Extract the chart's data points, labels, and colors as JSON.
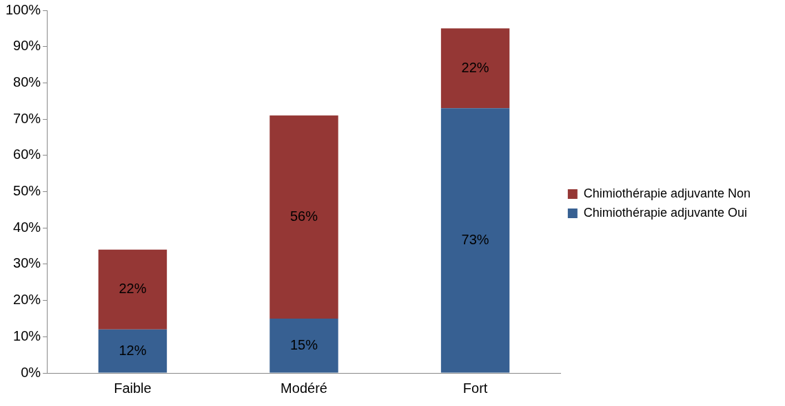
{
  "chart_data": {
    "type": "bar",
    "stacked": true,
    "categories": [
      "Faible",
      "Modéré",
      "Fort"
    ],
    "series": [
      {
        "name": "Chimiothérapie adjuvante Oui",
        "color": "#376092",
        "values": [
          12,
          15,
          73
        ],
        "value_labels": [
          "12%",
          "15%",
          "73%"
        ]
      },
      {
        "name": "Chimiothérapie adjuvante Non",
        "color": "#953735",
        "values": [
          22,
          56,
          22
        ],
        "value_labels": [
          "22%",
          "56%",
          "22%"
        ]
      }
    ],
    "ylim": [
      0,
      100
    ],
    "yticks": [
      {
        "value": 0,
        "label": "0%"
      },
      {
        "value": 10,
        "label": "10%"
      },
      {
        "value": 20,
        "label": "20%"
      },
      {
        "value": 30,
        "label": "30%"
      },
      {
        "value": 40,
        "label": "40%"
      },
      {
        "value": 50,
        "label": "50%"
      },
      {
        "value": 60,
        "label": "60%"
      },
      {
        "value": 70,
        "label": "70%"
      },
      {
        "value": 80,
        "label": "80%"
      },
      {
        "value": 90,
        "label": "90%"
      },
      {
        "value": 100,
        "label": "100%"
      }
    ],
    "grid": false,
    "legend": "right"
  }
}
